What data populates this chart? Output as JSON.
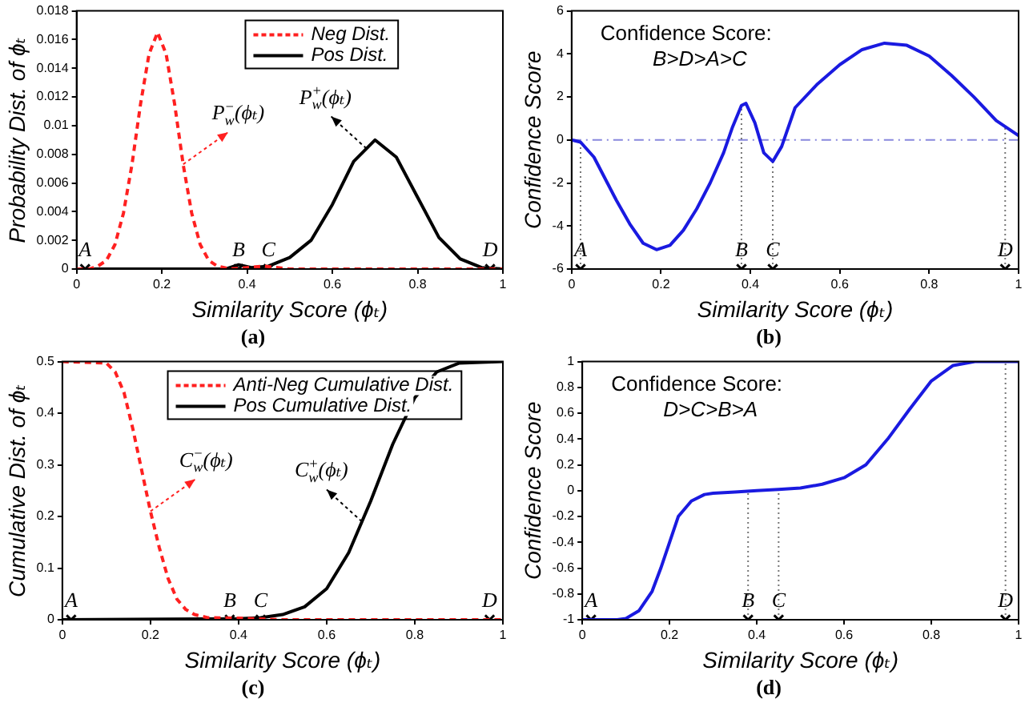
{
  "chart_data": [
    {
      "type": "line",
      "title": "(a)",
      "xlabel": "Similarity Score (ϕₜ)",
      "ylabel": "Probability Dist. of ϕₜ",
      "xlim": [
        0,
        1
      ],
      "ylim": [
        0,
        0.018
      ],
      "xticks": [
        0,
        0.2,
        0.4,
        0.6,
        0.8,
        1
      ],
      "yticks": [
        0,
        0.002,
        0.004,
        0.006,
        0.008,
        0.01,
        0.012,
        0.014,
        0.016,
        0.018
      ],
      "legend": "top",
      "series": [
        {
          "name": "Neg Dist.",
          "color": "#ff2020",
          "line_style": "dashed",
          "x": [
            0,
            0.03,
            0.05,
            0.07,
            0.09,
            0.11,
            0.13,
            0.15,
            0.17,
            0.19,
            0.21,
            0.23,
            0.25,
            0.27,
            0.29,
            0.31,
            0.33,
            0.36,
            0.4,
            0.44,
            0.5,
            1
          ],
          "values": [
            0,
            0,
            0.0002,
            0.0006,
            0.0017,
            0.0039,
            0.0073,
            0.0115,
            0.015,
            0.0165,
            0.015,
            0.0115,
            0.0073,
            0.0039,
            0.0017,
            0.0006,
            0.0002,
            0,
            0.0001,
            0.0002,
            0,
            0
          ]
        },
        {
          "name": "Pos Dist.",
          "color": "#000000",
          "line_style": "solid",
          "x": [
            0,
            0.35,
            0.38,
            0.41,
            0.45,
            0.5,
            0.55,
            0.6,
            0.65,
            0.7,
            0.75,
            0.8,
            0.85,
            0.9,
            0.95,
            1
          ],
          "values": [
            0,
            0,
            0.0003,
            0.0001,
            0.0002,
            0.0008,
            0.002,
            0.0045,
            0.0075,
            0.009,
            0.0078,
            0.005,
            0.0022,
            0.0007,
            0.0001,
            0
          ]
        },
        {
          "type": "scatter",
          "marker": "cross",
          "color": "#000000",
          "x": [
            0.02,
            0.38,
            0.45,
            0.97
          ],
          "values": [
            0,
            0,
            0,
            0
          ]
        }
      ],
      "annotations": [
        {
          "text": "P$^{−}$$_{w}$(ϕₜ)",
          "x": 0.25,
          "y": 0.0073
        },
        {
          "text": "P$^{+}$$_{w}$(ϕₜ)",
          "x": 0.68,
          "y": 0.0084
        },
        {
          "text": "A",
          "x": 0.02,
          "y": 0
        },
        {
          "text": "B",
          "x": 0.38,
          "y": 0
        },
        {
          "text": "C",
          "x": 0.45,
          "y": 0
        },
        {
          "text": "D",
          "x": 0.97,
          "y": 0
        }
      ]
    },
    {
      "type": "line",
      "title": "(b)",
      "xlabel": "Similarity Score (ϕₜ)",
      "ylabel": "Confidence Score",
      "xlim": [
        0,
        1
      ],
      "ylim": [
        -6,
        6
      ],
      "xticks": [
        0,
        0.2,
        0.4,
        0.6,
        0.8,
        1
      ],
      "yticks": [
        -6,
        -4,
        -2,
        0,
        2,
        4,
        6
      ],
      "series": [
        {
          "color": "#1a1ae0",
          "line_style": "solid",
          "x": [
            0,
            0.02,
            0.05,
            0.08,
            0.1,
            0.13,
            0.16,
            0.19,
            0.22,
            0.25,
            0.28,
            0.31,
            0.34,
            0.36,
            0.38,
            0.39,
            0.41,
            0.43,
            0.45,
            0.47,
            0.5,
            0.55,
            0.6,
            0.65,
            0.7,
            0.75,
            0.8,
            0.85,
            0.9,
            0.95,
            1
          ],
          "values": [
            0,
            -0.1,
            -0.8,
            -2,
            -2.8,
            -3.9,
            -4.8,
            -5.1,
            -4.9,
            -4.2,
            -3.2,
            -2,
            -0.6,
            0.6,
            1.6,
            1.7,
            0.8,
            -0.6,
            -1,
            -0.3,
            1.5,
            2.6,
            3.5,
            4.2,
            4.5,
            4.4,
            3.9,
            3,
            2,
            0.9,
            0.2
          ]
        },
        {
          "type": "scatter",
          "marker": "cross",
          "color": "#000000",
          "x": [
            0.02,
            0.38,
            0.45,
            0.97
          ],
          "values": [
            -6,
            -6,
            -6,
            -6
          ]
        }
      ],
      "ref_lines": [
        {
          "axis": "y",
          "value": 0,
          "color": "#8888dd",
          "line_style": "dashed"
        },
        {
          "axis": "x",
          "value": 0.02,
          "color": "#777777",
          "line_style": "dotted"
        },
        {
          "axis": "x",
          "value": 0.38,
          "color": "#777777",
          "line_style": "dotted"
        },
        {
          "axis": "x",
          "value": 0.45,
          "color": "#777777",
          "line_style": "dotted"
        },
        {
          "axis": "x",
          "value": 0.97,
          "color": "#777777",
          "line_style": "dotted"
        }
      ],
      "annotations": [
        "Confidence Score:",
        "B>D>A>C",
        {
          "text": "A",
          "x": 0.02,
          "y": -6
        },
        {
          "text": "B",
          "x": 0.38,
          "y": -6
        },
        {
          "text": "C",
          "x": 0.45,
          "y": -6
        },
        {
          "text": "D",
          "x": 0.97,
          "y": -6
        }
      ]
    },
    {
      "type": "line",
      "title": "(c)",
      "xlabel": "Similarity Score (ϕₜ)",
      "ylabel": "Cumulative Dist. of ϕₜ",
      "xlim": [
        0,
        1
      ],
      "ylim": [
        0,
        0.5
      ],
      "xticks": [
        0,
        0.2,
        0.4,
        0.6,
        0.8,
        1
      ],
      "yticks": [
        0,
        0.1,
        0.2,
        0.3,
        0.4,
        0.5
      ],
      "legend": "top",
      "series": [
        {
          "name": "Anti-Neg Cumulative Dist.",
          "color": "#ff2020",
          "line_style": "dashed",
          "x": [
            0,
            0.1,
            0.12,
            0.14,
            0.16,
            0.18,
            0.2,
            0.22,
            0.24,
            0.26,
            0.28,
            0.3,
            0.33,
            0.4,
            0.5,
            1
          ],
          "values": [
            0.5,
            0.497,
            0.48,
            0.44,
            0.37,
            0.29,
            0.21,
            0.14,
            0.08,
            0.04,
            0.02,
            0.01,
            0.004,
            0.003,
            0,
            0
          ]
        },
        {
          "name": "Pos Cumulative Dist.",
          "color": "#000000",
          "line_style": "solid",
          "x": [
            0,
            0.4,
            0.45,
            0.5,
            0.55,
            0.6,
            0.65,
            0.7,
            0.75,
            0.8,
            0.85,
            0.9,
            1
          ],
          "values": [
            0,
            0.002,
            0.004,
            0.01,
            0.025,
            0.06,
            0.13,
            0.23,
            0.34,
            0.43,
            0.48,
            0.497,
            0.5
          ]
        },
        {
          "type": "scatter",
          "marker": "cross",
          "color": "#000000",
          "x": [
            0.02,
            0.38,
            0.45,
            0.97
          ],
          "values": [
            0,
            0,
            0,
            0
          ]
        }
      ],
      "annotations": [
        {
          "text": "C$^{−}$$_{w}$(ϕₜ)",
          "x": 0.2,
          "y": 0.21
        },
        {
          "text": "C$^{+}$$_{w}$(ϕₜ)",
          "x": 0.68,
          "y": 0.19
        },
        {
          "text": "A",
          "x": 0.02,
          "y": 0
        },
        {
          "text": "B",
          "x": 0.38,
          "y": 0
        },
        {
          "text": "C",
          "x": 0.45,
          "y": 0
        },
        {
          "text": "D",
          "x": 0.97,
          "y": 0
        }
      ]
    },
    {
      "type": "line",
      "title": "(d)",
      "xlabel": "Similarity Score (ϕₜ)",
      "ylabel": "Confidence Score",
      "xlim": [
        0,
        1
      ],
      "ylim": [
        -1,
        1
      ],
      "xticks": [
        0,
        0.2,
        0.4,
        0.6,
        0.8,
        1
      ],
      "yticks": [
        -1,
        -0.8,
        -0.6,
        -0.4,
        -0.2,
        0,
        0.2,
        0.4,
        0.6,
        0.8,
        1
      ],
      "series": [
        {
          "color": "#1a1ae0",
          "line_style": "solid",
          "x": [
            0,
            0.08,
            0.1,
            0.13,
            0.16,
            0.18,
            0.2,
            0.22,
            0.25,
            0.28,
            0.3,
            0.35,
            0.4,
            0.45,
            0.5,
            0.55,
            0.6,
            0.65,
            0.7,
            0.75,
            0.8,
            0.85,
            0.9,
            1
          ],
          "values": [
            -1,
            -1,
            -0.99,
            -0.93,
            -0.78,
            -0.6,
            -0.4,
            -0.2,
            -0.08,
            -0.03,
            -0.02,
            -0.01,
            0,
            0.01,
            0.02,
            0.05,
            0.1,
            0.2,
            0.4,
            0.63,
            0.85,
            0.97,
            1,
            1
          ]
        },
        {
          "type": "scatter",
          "marker": "cross",
          "color": "#000000",
          "x": [
            0.02,
            0.38,
            0.45,
            0.97
          ],
          "values": [
            -1,
            -1,
            -1,
            -1
          ]
        }
      ],
      "ref_lines": [
        {
          "axis": "x",
          "value": 0.38,
          "color": "#777777",
          "line_style": "dotted"
        },
        {
          "axis": "x",
          "value": 0.45,
          "color": "#777777",
          "line_style": "dotted"
        },
        {
          "axis": "x",
          "value": 0.97,
          "color": "#777777",
          "line_style": "dotted"
        }
      ],
      "annotations": [
        "Confidence Score:",
        "D>C>B>A",
        {
          "text": "A",
          "x": 0.02,
          "y": -1
        },
        {
          "text": "B",
          "x": 0.38,
          "y": -1
        },
        {
          "text": "C",
          "x": 0.45,
          "y": -1
        },
        {
          "text": "D",
          "x": 0.97,
          "y": -1
        }
      ]
    }
  ]
}
